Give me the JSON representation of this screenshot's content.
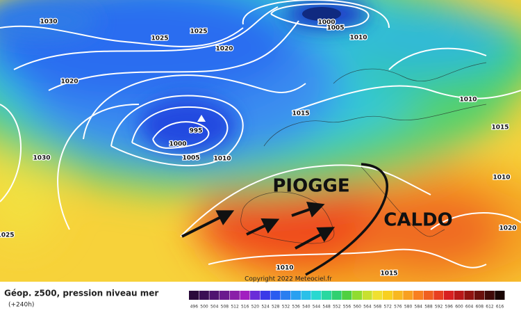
{
  "map": {
    "isobar_labels": [
      "1030",
      "1025",
      "1025",
      "1020",
      "1000",
      "1005",
      "1010",
      "1020",
      "995",
      "1000",
      "1005",
      "1010",
      "1015",
      "1030",
      "1025",
      "1010",
      "1015",
      "1010",
      "1020",
      "1015",
      "1010"
    ],
    "annotations": [
      "PIOGGE",
      "CALDO"
    ],
    "copyright": "Copyright 2022 Meteociel.fr"
  },
  "legend": {
    "title": "Géop. z500, pression niveau mer",
    "subtitle": "(+240h)",
    "scale_labels": [
      496,
      500,
      504,
      508,
      512,
      516,
      520,
      524,
      528,
      532,
      536,
      540,
      544,
      548,
      552,
      556,
      560,
      564,
      568,
      572,
      576,
      580,
      584,
      588,
      592,
      596,
      600,
      604,
      608,
      612,
      616
    ]
  }
}
